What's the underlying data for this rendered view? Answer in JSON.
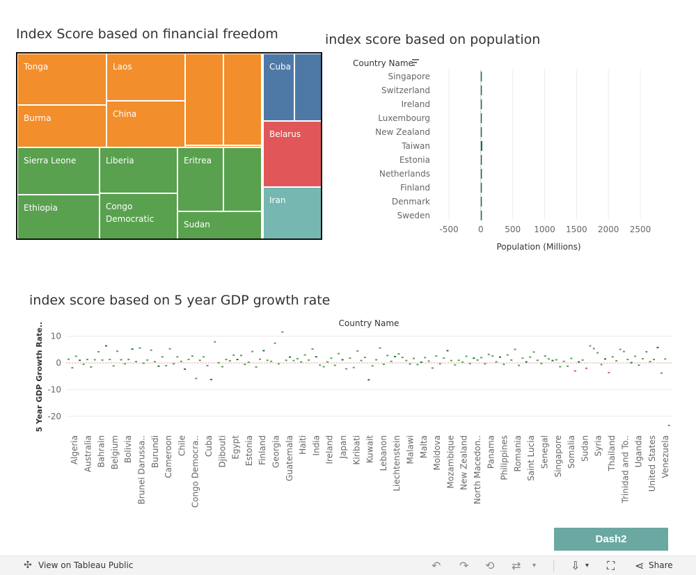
{
  "treemap": {
    "title": "Index Score based on financial freedom",
    "cells": [
      {
        "label": "Tonga",
        "color": "#f28e2b"
      },
      {
        "label": "Laos",
        "color": "#f28e2b"
      },
      {
        "label": "Burma",
        "color": "#f28e2b"
      },
      {
        "label": "China",
        "color": "#f28e2b"
      },
      {
        "label": "Cuba",
        "color": "#4e79a7"
      },
      {
        "label": "Belarus",
        "color": "#e15759"
      },
      {
        "label": "Iran",
        "color": "#76b7b2"
      },
      {
        "label": "Sierra Leone",
        "color": "#59a14f"
      },
      {
        "label": "Liberia",
        "color": "#59a14f"
      },
      {
        "label": "Eritrea",
        "color": "#59a14f"
      },
      {
        "label": "Ethiopia",
        "color": "#59a14f"
      },
      {
        "label": "Congo Democratic",
        "color": "#59a14f"
      },
      {
        "label": "Sudan",
        "color": "#59a14f"
      }
    ]
  },
  "chart_data": [
    {
      "type": "bar",
      "title": "index score based on population",
      "header": "Country Name",
      "xlabel": "Population (Millions)",
      "xlim": [
        -500,
        2500
      ],
      "xticks": [
        -500,
        0,
        500,
        1000,
        1500,
        2000,
        2500
      ],
      "categories": [
        "Singapore",
        "Switzerland",
        "Ireland",
        "Luxembourg",
        "New Zealand",
        "Taiwan",
        "Estonia",
        "Netherlands",
        "Finland",
        "Denmark",
        "Sweden"
      ],
      "values": [
        5.7,
        8.6,
        5.0,
        0.6,
        5.1,
        23.6,
        1.3,
        17.5,
        5.5,
        5.8,
        10.4
      ],
      "color": "#1f6e43"
    },
    {
      "type": "scatter",
      "title": "index score based on 5 year GDP growth rate",
      "header": "Country Name",
      "ylabel": "5 Year GDP Growth Rate..",
      "ylim": [
        -25,
        12
      ],
      "yticks": [
        10,
        0,
        -10,
        -20
      ],
      "labels": [
        "Algeria",
        "Australia",
        "Bahrain",
        "Belgium",
        "Bolivia",
        "Brunei Darussa..",
        "Burundi",
        "Cameroon",
        "Chile",
        "Congo Democra..",
        "Cuba",
        "Djibouti",
        "Egypt",
        "Estonia",
        "Finland",
        "Georgia",
        "Guatemala",
        "Haiti",
        "India",
        "Ireland",
        "Japan",
        "Kiribati",
        "Kuwait",
        "Lebanon",
        "Liechtenstein",
        "Malawi",
        "Malta",
        "Moldova",
        "Mozambique",
        "New Zealand",
        "North Macedon..",
        "Panama",
        "Philippines",
        "Romania",
        "Saint Lucia",
        "Senegal",
        "Singapore",
        "Somalia",
        "Sudan",
        "Syria",
        "Thailand",
        "Trinidad and To..",
        "Uganda",
        "United States",
        "Venezuela"
      ],
      "values": [
        1.4,
        -1.8,
        2.5,
        1.0,
        -0.5,
        1.3,
        -1.5,
        1.2,
        4.2,
        1.1,
        6.4,
        1.3,
        -1.1,
        4.4,
        1.2,
        -0.3,
        1.3,
        5.2,
        0.5,
        5.6,
        -0.1,
        1.1,
        4.8,
        0.5,
        -1.2,
        2.3,
        -1.0,
        5.3,
        -0.3,
        2.3,
        0.6,
        -2.3,
        1.3,
        2.6,
        -5.8,
        1.0,
        2.3,
        -1.0,
        -6.2,
        7.9,
        0.1,
        -1.4,
        1.3,
        0.8,
        2.9,
        1.3,
        2.8,
        -0.5,
        0.3,
        4.3,
        -1.5,
        1.4,
        4.6,
        1.0,
        0.6,
        7.4,
        -0.3,
        11.6,
        1.0,
        2.2,
        0.9,
        1.6,
        0.4,
        3.0,
        1.1,
        5.2,
        2.3,
        -0.8,
        -1.4,
        0.4,
        1.8,
        -0.9,
        3.5,
        1.2,
        -2.2,
        1.8,
        -1.7,
        4.5,
        0.9,
        2.1,
        -6.3,
        -1.1,
        1.2,
        5.6,
        -0.5,
        2.8,
        0.6,
        2.4,
        3.4,
        2.1,
        0.9,
        -0.4,
        1.7,
        -0.6,
        0.3,
        2.0,
        0.7,
        -1.9,
        2.6,
        -0.3,
        1.8,
        4.6,
        0.9,
        -0.7,
        1.0,
        0.3,
        2.5,
        -0.2,
        1.8,
        1.1,
        2.0,
        -0.3,
        3.2,
        2.6,
        0.4,
        2.2,
        -0.5,
        3.0,
        1.1,
        5.1,
        -0.9,
        1.8,
        0.4,
        2.2,
        4.1,
        1.0,
        -0.2,
        2.6,
        1.5,
        0.9,
        1.2,
        -1.4,
        0.6,
        -1.2,
        1.7,
        -3.0,
        0.4,
        1.1,
        -2.0,
        6.4,
        5.4,
        3.8,
        -0.6,
        1.5,
        -3.6,
        2.3,
        0.8,
        5.1,
        4.3,
        1.3,
        0.1,
        2.5,
        -0.8,
        1.6,
        4.2,
        0.5,
        1.3,
        5.8,
        -3.8,
        1.5,
        -23.4
      ],
      "series_colors": {
        "positive": "#59a14f",
        "negative": "#e15759",
        "neutral": "#1f6e43"
      }
    }
  ],
  "dashboard_button": "Dash2",
  "footer": {
    "view_label": "View on Tableau Public",
    "share_label": "Share"
  }
}
